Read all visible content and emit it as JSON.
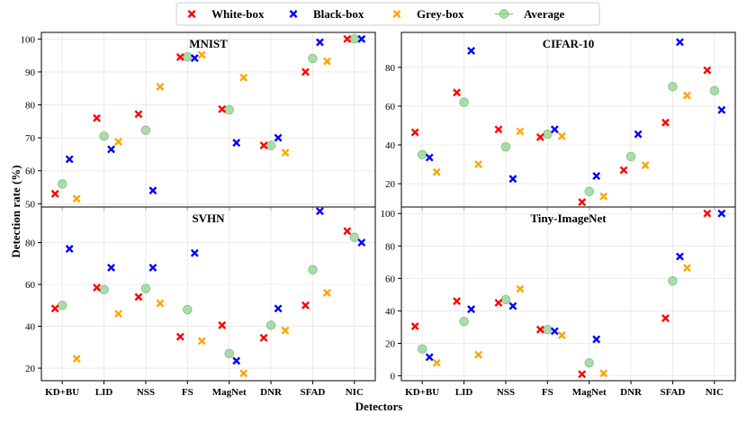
{
  "chart_data": {
    "type": "scatter",
    "xlabel": "Detectors",
    "ylabel": "Detection rate (%)",
    "categories": [
      "KD+BU",
      "LID",
      "NSS",
      "FS",
      "MagNet",
      "DNR",
      "SFAD",
      "NIC"
    ],
    "legend": {
      "placement": "top-center",
      "entries": [
        {
          "key": "white",
          "label": "White-box",
          "marker": "x",
          "color": "#ff0000"
        },
        {
          "key": "black",
          "label": "Black-box",
          "marker": "x",
          "color": "#0000ff"
        },
        {
          "key": "grey",
          "label": "Grey-box",
          "marker": "x",
          "color": "#ffa500"
        },
        {
          "key": "average",
          "label": "Average",
          "marker": "o",
          "color": "#90d090"
        }
      ]
    },
    "panels": [
      {
        "id": "mnist",
        "title": "MNIST",
        "ylim": [
          49,
          102
        ],
        "yticks": [
          50,
          60,
          70,
          80,
          90,
          100
        ],
        "show_x_ticks": false,
        "series": {
          "white": [
            53,
            76,
            77.2,
            94.5,
            78.7,
            67.7,
            90,
            100
          ],
          "black": [
            63.5,
            66.5,
            54,
            94.2,
            68.5,
            70,
            99,
            100
          ],
          "grey": [
            51.5,
            68.8,
            85.5,
            95.2,
            88.3,
            65.5,
            93.2,
            null
          ],
          "average": [
            56,
            70.5,
            72.3,
            94.6,
            78.5,
            67.7,
            94.1,
            100
          ]
        }
      },
      {
        "id": "cifar10",
        "title": "CIFAR-10",
        "ylim": [
          8,
          98
        ],
        "yticks": [
          20,
          40,
          60,
          80
        ],
        "show_x_ticks": false,
        "series": {
          "white": [
            46.5,
            67,
            48,
            44,
            10.5,
            27,
            51.5,
            78.5
          ],
          "black": [
            33.5,
            88.5,
            22.5,
            48,
            24,
            45.5,
            93,
            58
          ],
          "grey": [
            26,
            30,
            47,
            44.5,
            13.5,
            29.5,
            65.5,
            null
          ],
          "average": [
            35,
            62,
            39,
            45.5,
            16,
            34,
            70,
            68
          ]
        }
      },
      {
        "id": "svhn",
        "title": "SVHN",
        "ylim": [
          14,
          97
        ],
        "yticks": [
          20,
          40,
          60,
          80
        ],
        "show_x_ticks": true,
        "series": {
          "white": [
            48.5,
            58.5,
            54,
            35,
            40.5,
            34.5,
            50,
            85.5
          ],
          "black": [
            77,
            68,
            68,
            75,
            23.5,
            48.5,
            95,
            80
          ],
          "grey": [
            24.5,
            46,
            51,
            33,
            17.5,
            38,
            56,
            null
          ],
          "average": [
            50,
            57.5,
            58,
            48,
            27,
            40.5,
            67,
            82.5
          ]
        }
      },
      {
        "id": "tinyimagenet",
        "title": "Tiny-ImageNet",
        "ylim": [
          -3,
          104
        ],
        "yticks": [
          0,
          20,
          40,
          60,
          80,
          100
        ],
        "show_x_ticks": true,
        "series": {
          "white": [
            30.5,
            46,
            45,
            28.5,
            1,
            null,
            35.5,
            100
          ],
          "black": [
            11.5,
            41,
            43,
            27.5,
            22.5,
            null,
            73.5,
            100
          ],
          "grey": [
            8,
            13,
            53.5,
            25,
            1.5,
            null,
            66.5,
            null
          ],
          "average": [
            16.5,
            33.5,
            47,
            28.5,
            8,
            null,
            58.5,
            null
          ]
        }
      }
    ]
  }
}
